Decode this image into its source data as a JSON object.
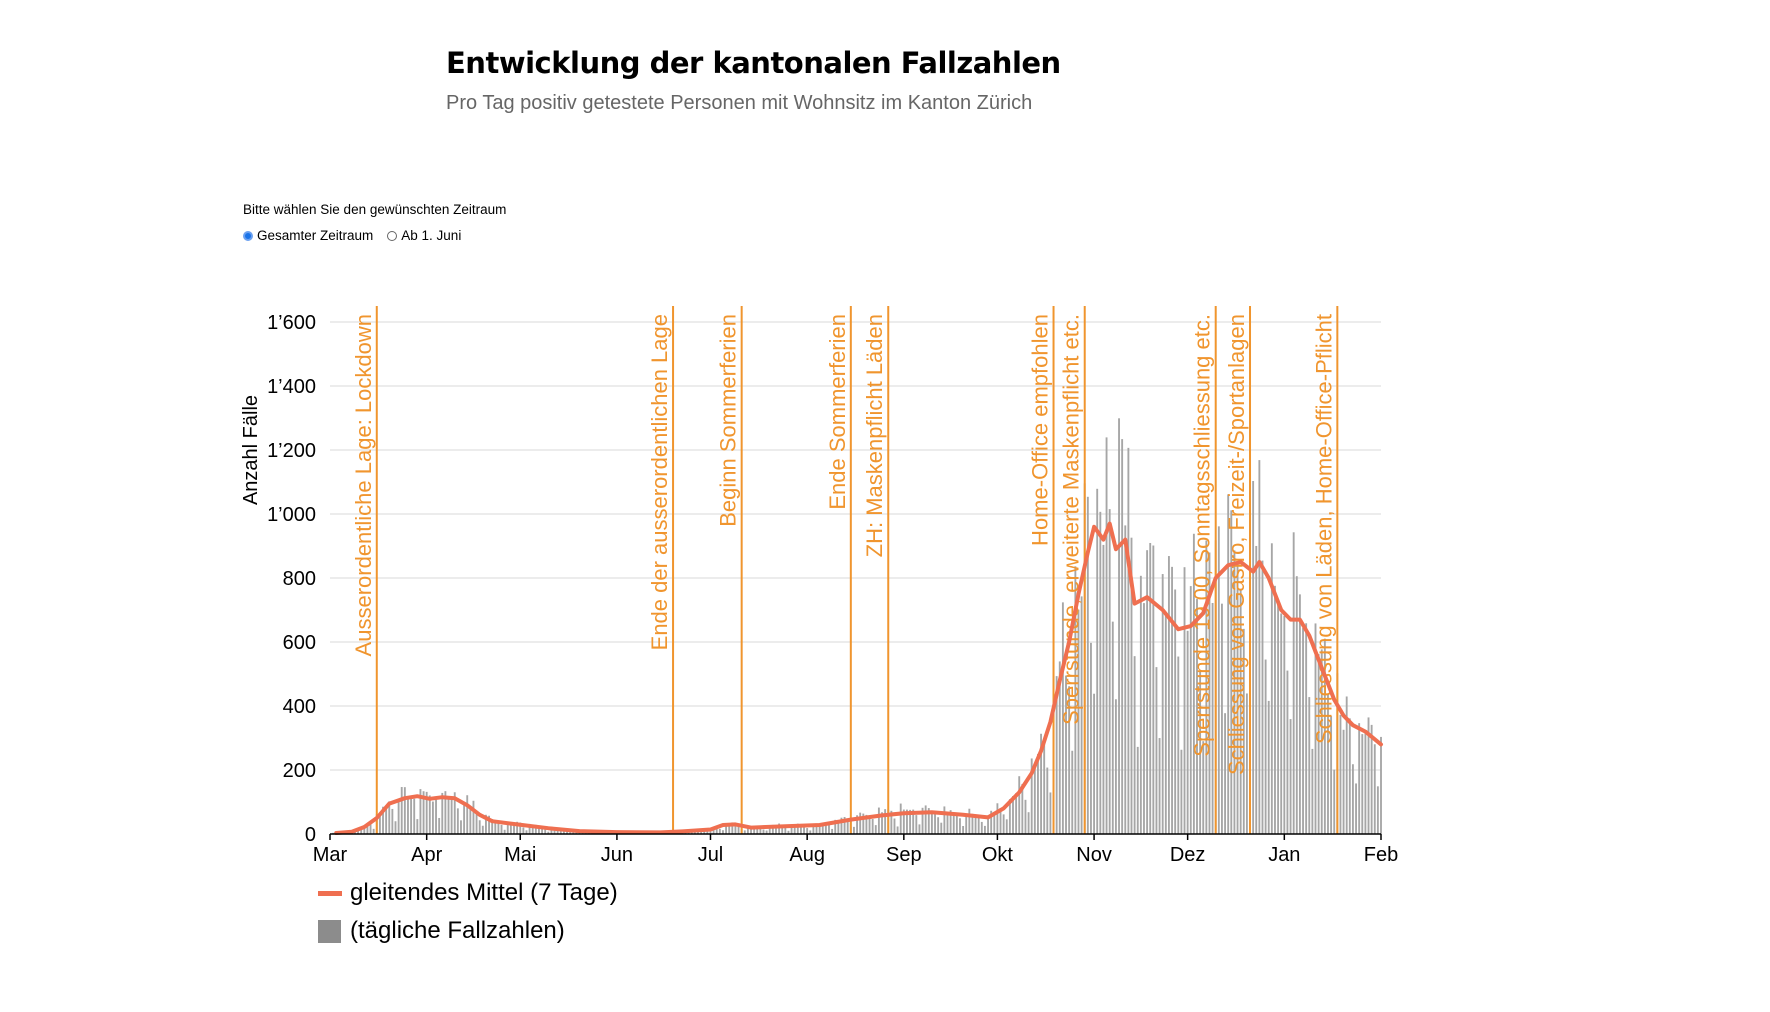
{
  "header": {
    "title": "Entwicklung der kantonalen Fallzahlen",
    "subtitle": "Pro Tag positiv getestete Personen mit Wohnsitz im Kanton Zürich"
  },
  "controls": {
    "label": "Bitte wählen Sie den gewünschten Zeitraum",
    "options": [
      {
        "label": "Gesamter Zeitraum",
        "selected": true
      },
      {
        "label": "Ab 1. Juni",
        "selected": false
      }
    ]
  },
  "legend": {
    "line_label": "gleitendes Mittel (7 Tage)",
    "bar_label": "(tägliche Fallzahlen)"
  },
  "chart_data": {
    "type": "bar",
    "ylabel": "Anzahl Fälle",
    "ylim": [
      0,
      1600
    ],
    "yticks": [
      0,
      200,
      400,
      600,
      800,
      1000,
      1200,
      1400,
      1600
    ],
    "ytick_labels": [
      "0",
      "200",
      "400",
      "600",
      "800",
      "1’000",
      "1’200",
      "1’400",
      "1’600"
    ],
    "x_range": [
      "2020-03-01",
      "2021-02-01"
    ],
    "month_ticks": [
      {
        "date": "2020-03-01",
        "label": "Mar"
      },
      {
        "date": "2020-04-01",
        "label": "Apr"
      },
      {
        "date": "2020-05-01",
        "label": "Mai"
      },
      {
        "date": "2020-06-01",
        "label": "Jun"
      },
      {
        "date": "2020-07-01",
        "label": "Jul"
      },
      {
        "date": "2020-08-01",
        "label": "Aug"
      },
      {
        "date": "2020-09-01",
        "label": "Sep"
      },
      {
        "date": "2020-10-01",
        "label": "Okt"
      },
      {
        "date": "2020-11-01",
        "label": "Nov"
      },
      {
        "date": "2020-12-01",
        "label": "Dez"
      },
      {
        "date": "2021-01-01",
        "label": "Jan"
      },
      {
        "date": "2021-02-01",
        "label": "Feb"
      }
    ],
    "grid": true,
    "series_colors": {
      "line": "#ef6f50",
      "bars": "#a6a6a6",
      "events": "#f0952e"
    },
    "events": [
      {
        "date": "2020-03-16",
        "label": "Ausserordentliche Lage: Lockdown"
      },
      {
        "date": "2020-06-19",
        "label": "Ende der ausserordentlichen Lage"
      },
      {
        "date": "2020-07-11",
        "label": "Beginn Sommerferien"
      },
      {
        "date": "2020-08-15",
        "label": "Ende Sommerferien"
      },
      {
        "date": "2020-08-27",
        "label": "ZH: Maskenpflicht Läden"
      },
      {
        "date": "2020-10-19",
        "label": "Home-Office empfohlen"
      },
      {
        "date": "2020-10-29",
        "label": "Sperrstunde, erweiterte Maskenpflicht etc."
      },
      {
        "date": "2020-12-10",
        "label": "Sperrstunde 19.00, Sonntagsschliessung etc."
      },
      {
        "date": "2020-12-21",
        "label": "Schliessung von Gastro, Freizeit-/Sportanlagen"
      },
      {
        "date": "2021-01-18",
        "label": "Schliessung von Läden, Home-Office-Pflicht"
      }
    ],
    "series": [
      {
        "name": "gleitendes Mittel (7 Tage)",
        "type": "line",
        "points": [
          [
            "2020-03-03",
            3
          ],
          [
            "2020-03-08",
            7
          ],
          [
            "2020-03-12",
            22
          ],
          [
            "2020-03-16",
            50
          ],
          [
            "2020-03-20",
            95
          ],
          [
            "2020-03-25",
            112
          ],
          [
            "2020-03-29",
            118
          ],
          [
            "2020-04-02",
            110
          ],
          [
            "2020-04-06",
            115
          ],
          [
            "2020-04-10",
            112
          ],
          [
            "2020-04-14",
            90
          ],
          [
            "2020-04-18",
            60
          ],
          [
            "2020-04-22",
            40
          ],
          [
            "2020-04-30",
            30
          ],
          [
            "2020-05-10",
            18
          ],
          [
            "2020-05-20",
            9
          ],
          [
            "2020-06-01",
            6
          ],
          [
            "2020-06-15",
            5
          ],
          [
            "2020-06-22",
            8
          ],
          [
            "2020-07-01",
            14
          ],
          [
            "2020-07-05",
            28
          ],
          [
            "2020-07-09",
            30
          ],
          [
            "2020-07-14",
            20
          ],
          [
            "2020-07-25",
            24
          ],
          [
            "2020-08-05",
            28
          ],
          [
            "2020-08-15",
            45
          ],
          [
            "2020-08-25",
            58
          ],
          [
            "2020-09-01",
            65
          ],
          [
            "2020-09-10",
            68
          ],
          [
            "2020-09-20",
            60
          ],
          [
            "2020-09-28",
            52
          ],
          [
            "2020-10-03",
            80
          ],
          [
            "2020-10-08",
            130
          ],
          [
            "2020-10-12",
            190
          ],
          [
            "2020-10-15",
            260
          ],
          [
            "2020-10-18",
            350
          ],
          [
            "2020-10-21",
            480
          ],
          [
            "2020-10-24",
            600
          ],
          [
            "2020-10-27",
            750
          ],
          [
            "2020-10-30",
            880
          ],
          [
            "2020-11-01",
            960
          ],
          [
            "2020-11-04",
            920
          ],
          [
            "2020-11-06",
            970
          ],
          [
            "2020-11-08",
            890
          ],
          [
            "2020-11-11",
            920
          ],
          [
            "2020-11-14",
            720
          ],
          [
            "2020-11-18",
            740
          ],
          [
            "2020-11-23",
            700
          ],
          [
            "2020-11-28",
            640
          ],
          [
            "2020-12-02",
            650
          ],
          [
            "2020-12-06",
            690
          ],
          [
            "2020-12-10",
            800
          ],
          [
            "2020-12-14",
            840
          ],
          [
            "2020-12-18",
            850
          ],
          [
            "2020-12-22",
            820
          ],
          [
            "2020-12-24",
            850
          ],
          [
            "2020-12-27",
            800
          ],
          [
            "2020-12-31",
            700
          ],
          [
            "2021-01-03",
            670
          ],
          [
            "2021-01-06",
            670
          ],
          [
            "2021-01-09",
            620
          ],
          [
            "2021-01-13",
            520
          ],
          [
            "2021-01-17",
            420
          ],
          [
            "2021-01-20",
            370
          ],
          [
            "2021-01-23",
            340
          ],
          [
            "2021-01-27",
            320
          ],
          [
            "2021-02-01",
            280
          ]
        ]
      },
      {
        "name": "(tägliche Fallzahlen)",
        "type": "bar"
      }
    ]
  }
}
